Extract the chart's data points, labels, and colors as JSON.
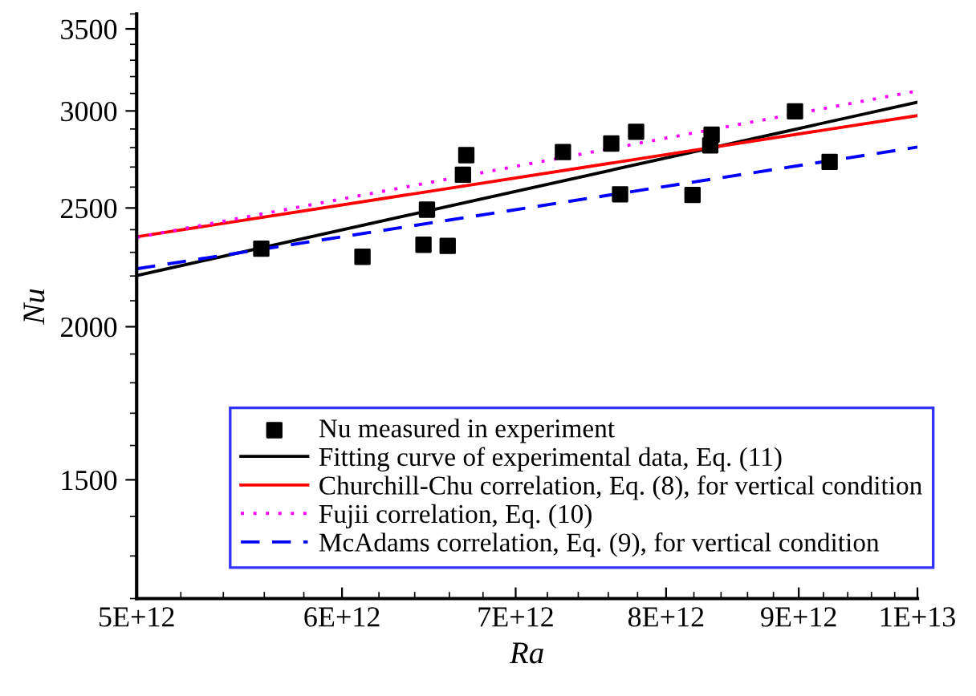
{
  "chart_data": {
    "type": "scatter",
    "xlabel": "Ra",
    "ylabel": "Nu",
    "log": "xy",
    "xlim": [
      5000000000000.0,
      10000000000000.0
    ],
    "ylim": [
      1200,
      3600
    ],
    "xticks": [
      {
        "value": 5000000000000.0,
        "label": "5E+12"
      },
      {
        "value": 6000000000000.0,
        "label": "6E+12"
      },
      {
        "value": 7000000000000.0,
        "label": "7E+12"
      },
      {
        "value": 8000000000000.0,
        "label": "8E+12"
      },
      {
        "value": 9000000000000.0,
        "label": "9E+12"
      },
      {
        "value": 10000000000000.0,
        "label": "1E+13"
      }
    ],
    "yticks": [
      1500,
      2000,
      2500,
      3000,
      3500
    ],
    "grid": false,
    "legend": "bottom",
    "series": [
      {
        "name": "Nu measured in experiment",
        "marker": "square",
        "color": "#000000",
        "x": [
          5585000000000.0,
          6110000000000.0,
          6450000000000.0,
          6470000000000.0,
          6590000000000.0,
          6680000000000.0,
          6700000000000.0,
          7300000000000.0,
          7620000000000.0,
          7680000000000.0,
          7790000000000.0,
          8190000000000.0,
          8320000000000.0,
          8330000000000.0,
          8970000000000.0,
          9250000000000.0
        ],
        "values": [
          2316,
          2281,
          2333,
          2492,
          2328,
          2661,
          2761,
          2777,
          2822,
          2565,
          2885,
          2562,
          2812,
          2869,
          2998,
          2726
        ]
      },
      {
        "name": "Fitting curve of experimental data, Eq. (11)",
        "type": "line",
        "line_style": "solid",
        "color": "#000000",
        "x": [
          5000000000000.0,
          10000000000000.0
        ],
        "values": [
          2202,
          3050
        ]
      },
      {
        "name": "Churchill-Chu correlation, Eq. (8), for vertical condition",
        "type": "line",
        "line_style": "solid",
        "color": "#ff0000",
        "x": [
          5000000000000.0,
          10000000000000.0
        ],
        "values": [
          2368,
          2974
        ]
      },
      {
        "name": "Fujii correlation, Eq. (10)",
        "type": "line",
        "line_style": "dotted",
        "color": "#ff00ff",
        "x": [
          5000000000000.0,
          10000000000000.0
        ],
        "values": [
          2365,
          3115
        ]
      },
      {
        "name": "McAdams correlation, Eq. (9), for vertical condition",
        "type": "line",
        "line_style": "dashed",
        "color": "#0000ff",
        "x": [
          5000000000000.0,
          10000000000000.0
        ],
        "values": [
          2230,
          2803
        ]
      }
    ]
  }
}
